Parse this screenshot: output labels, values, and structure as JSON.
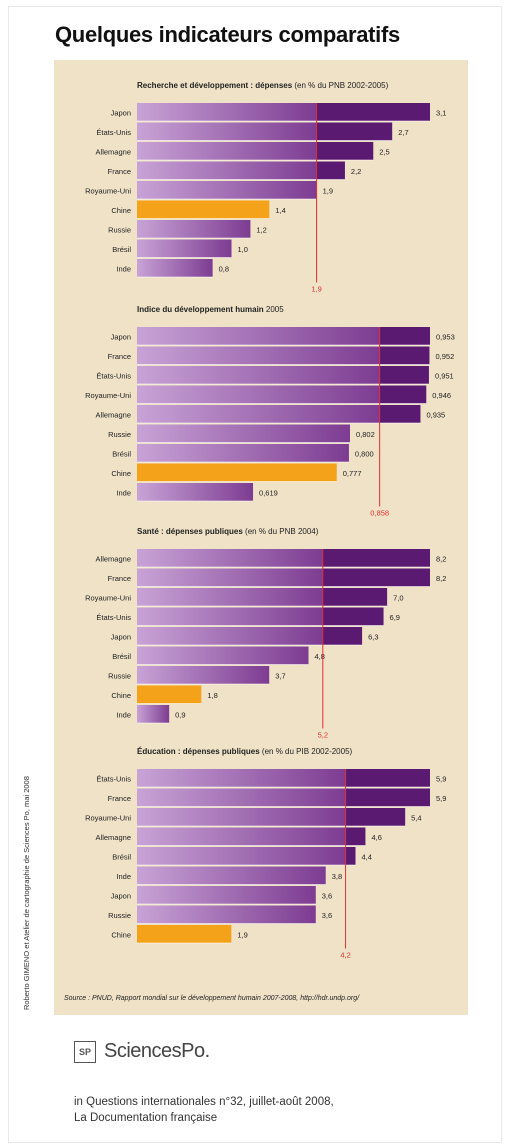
{
  "page": {
    "title": "Quelques indicateurs comparatifs",
    "vertical_credit": "Roberto GIMENO et Atelier de cartographie de Sciences Po, mai 2008",
    "source": "Source : PNUD, Rapport mondial sur le développement humain 2007-2008, http://hdr.undp.org/",
    "logo_mark": "SP",
    "logo_text": "SciencesPo.",
    "credit_line1": "in Questions internationales n°32, juillet-août 2008,",
    "credit_line2": "La Documentation française"
  },
  "colors": {
    "bar_light": "#c8a3d6",
    "bar_dark": "#7d3c92",
    "bar_deep": "#5a1a72",
    "highlight": "#f5a21b",
    "panel": "#efe2c7",
    "mean_line": "#e03030"
  },
  "chart_data": [
    {
      "type": "bar",
      "title_bold": "Recherche et développement : dépenses",
      "title_rest": " (en % du PNB 2002-2005)",
      "categories": [
        "Japon",
        "États-Unis",
        "Allemagne",
        "France",
        "Royaume-Uni",
        "Chine",
        "Russie",
        "Brésil",
        "Inde"
      ],
      "values": [
        3.1,
        2.7,
        2.5,
        2.2,
        1.9,
        1.4,
        1.2,
        1.0,
        0.8
      ],
      "value_labels": [
        "3,1",
        "2,7",
        "2,5",
        "2,2",
        "1,9",
        "1,4",
        "1,2",
        "1,0",
        "0,8"
      ],
      "highlight": "Chine",
      "reference": 1.9,
      "reference_label": "1,9",
      "xlim": [
        0,
        3.1
      ]
    },
    {
      "type": "bar",
      "title_bold": "Indice du développement humain",
      "title_rest": " 2005",
      "categories": [
        "Japon",
        "France",
        "États-Unis",
        "Royaume-Uni",
        "Allemagne",
        "Russie",
        "Brésil",
        "Chine",
        "Inde"
      ],
      "values": [
        0.953,
        0.952,
        0.951,
        0.946,
        0.935,
        0.802,
        0.8,
        0.777,
        0.619
      ],
      "value_labels": [
        "0,953",
        "0,952",
        "0,951",
        "0,946",
        "0,935",
        "0,802",
        "0,800",
        "0,777",
        "0,619"
      ],
      "highlight": "Chine",
      "reference": 0.858,
      "reference_label": "0,858",
      "xlim": [
        0.4,
        0.953
      ]
    },
    {
      "type": "bar",
      "title_bold": "Santé : dépenses publiques",
      "title_rest": " (en % du PNB 2004)",
      "categories": [
        "Allemagne",
        "France",
        "Royaume-Uni",
        "États-Unis",
        "Japon",
        "Brésil",
        "Russie",
        "Chine",
        "Inde"
      ],
      "values": [
        8.2,
        8.2,
        7.0,
        6.9,
        6.3,
        4.8,
        3.7,
        1.8,
        0.9
      ],
      "value_labels": [
        "8,2",
        "8,2",
        "7,0",
        "6,9",
        "6,3",
        "4,8",
        "3,7",
        "1,8",
        "0,9"
      ],
      "highlight": "Chine",
      "reference": 5.2,
      "reference_label": "5,2",
      "xlim": [
        0,
        8.2
      ]
    },
    {
      "type": "bar",
      "title_bold": "Éducation : dépenses publiques",
      "title_rest": " (en % du PIB 2002-2005)",
      "categories": [
        "États-Unis",
        "France",
        "Royaume-Uni",
        "Allemagne",
        "Brésil",
        "Inde",
        "Japon",
        "Russie",
        "Chine"
      ],
      "values": [
        5.9,
        5.9,
        5.4,
        4.6,
        4.4,
        3.8,
        3.6,
        3.6,
        1.9
      ],
      "value_labels": [
        "5,9",
        "5,9",
        "5,4",
        "4,6",
        "4,4",
        "3,8",
        "3,6",
        "3,6",
        "1,9"
      ],
      "highlight": "Chine",
      "reference": 4.2,
      "reference_label": "4,2",
      "xlim": [
        0,
        5.9
      ]
    }
  ]
}
